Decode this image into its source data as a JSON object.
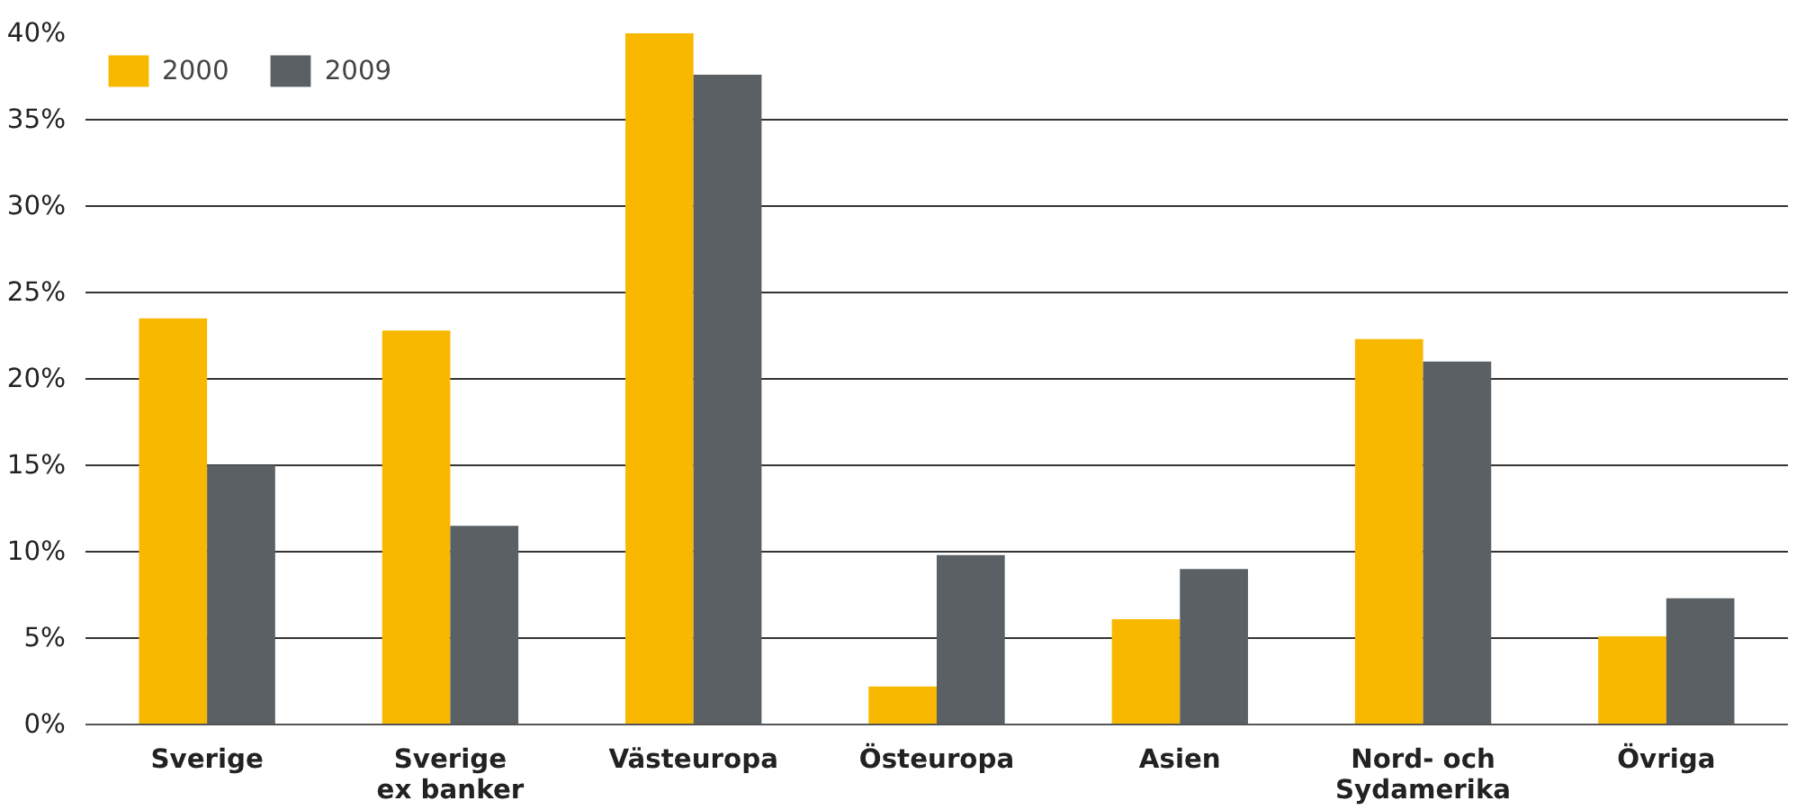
{
  "chart_data": {
    "type": "bar",
    "categories": [
      "Sverige",
      "Sverige\nex banker",
      "Västeuropa",
      "Östeuropa",
      "Asien",
      "Nord- och\nSydamerika",
      "Övriga"
    ],
    "series": [
      {
        "name": "2000",
        "color": "#f9b800",
        "values": [
          23.5,
          22.8,
          40.0,
          2.2,
          6.1,
          22.3,
          5.1
        ]
      },
      {
        "name": "2009",
        "color": "#5a6064",
        "values": [
          15.0,
          11.5,
          37.6,
          9.8,
          9.0,
          21.0,
          7.3
        ]
      }
    ],
    "ylim": [
      0,
      40
    ],
    "yticks": [
      {
        "value": 0,
        "label": "0%"
      },
      {
        "value": 5,
        "label": "5%"
      },
      {
        "value": 10,
        "label": "10%"
      },
      {
        "value": 15,
        "label": "15%"
      },
      {
        "value": 20,
        "label": "20%"
      },
      {
        "value": 25,
        "label": "25%"
      },
      {
        "value": 30,
        "label": "30%"
      },
      {
        "value": 35,
        "label": "35%"
      },
      {
        "value": 40,
        "label": "40%"
      }
    ],
    "grid": "y",
    "legend": "top left"
  }
}
